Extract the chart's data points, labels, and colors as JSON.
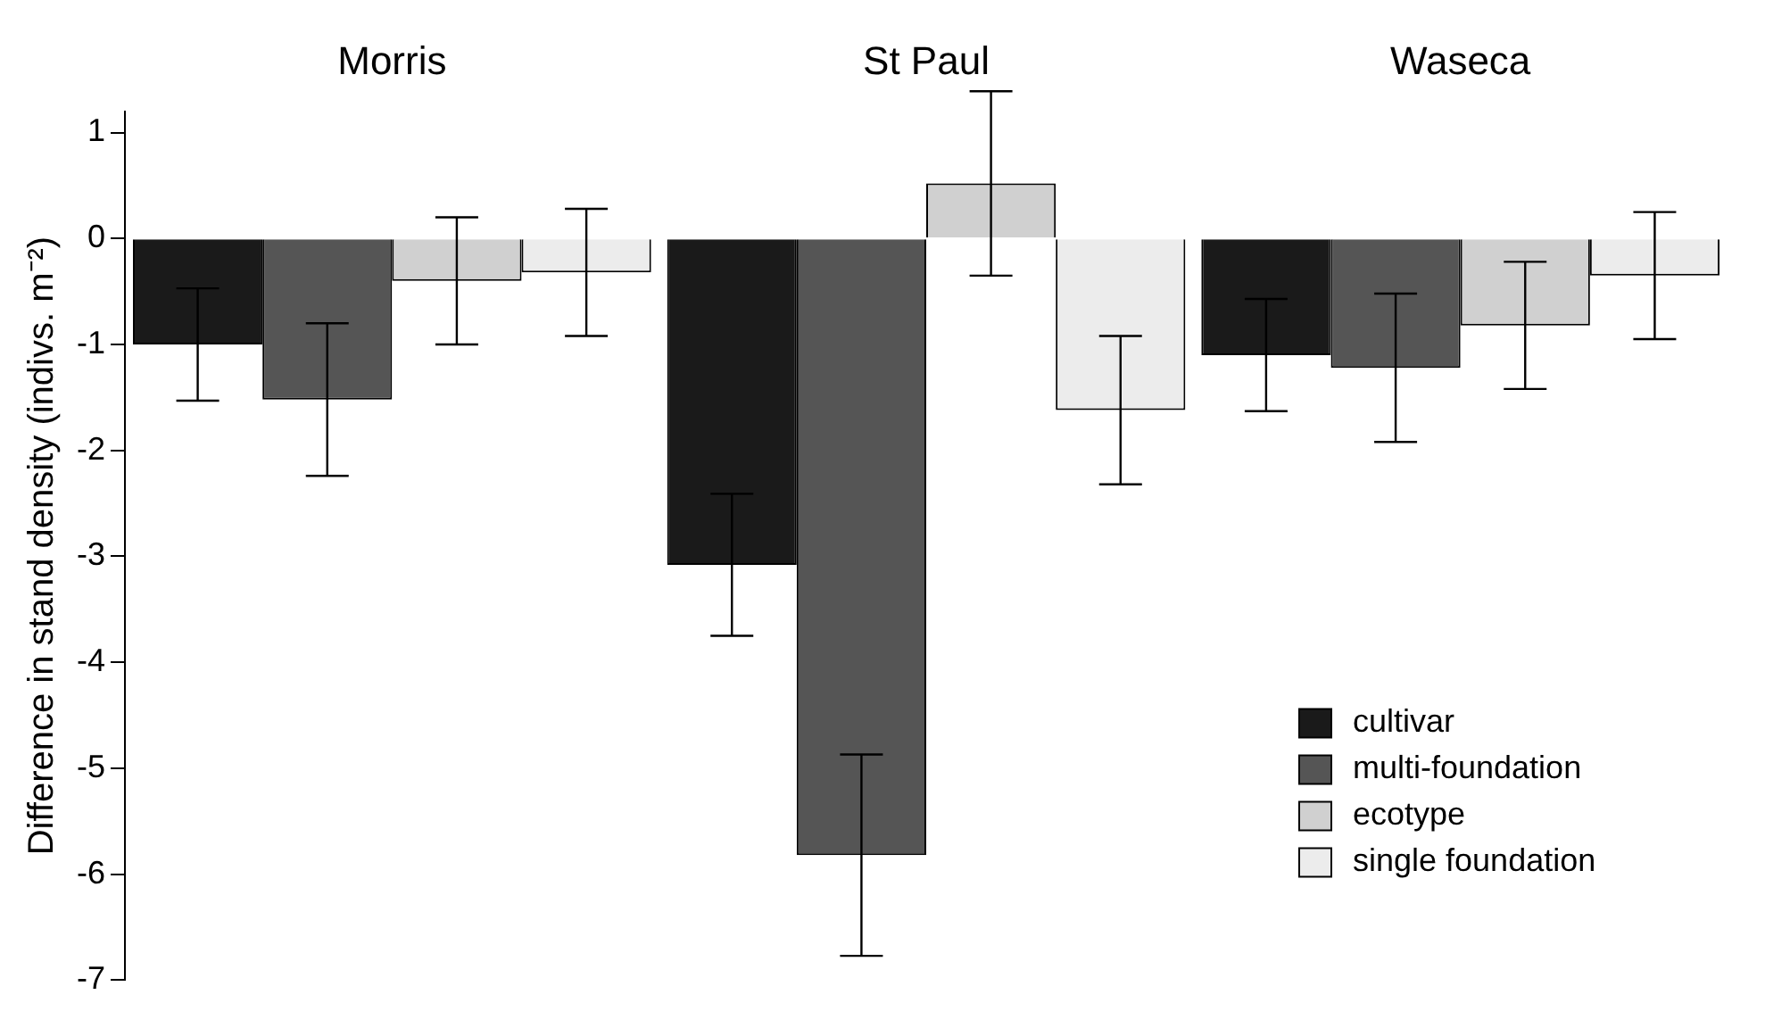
{
  "chart_data": {
    "type": "bar",
    "ylabel": "Difference in stand density (indivs. m⁻²)",
    "categories": [
      "Morris",
      "St Paul",
      "Waseca"
    ],
    "series": [
      {
        "name": "cultivar",
        "color": "#1a1a1a",
        "values": [
          -1.0,
          -3.08,
          -1.1
        ],
        "errors": [
          0.53,
          0.67,
          0.53
        ]
      },
      {
        "name": "multi-foundation",
        "color": "#555555",
        "values": [
          -1.52,
          -5.82,
          -1.22
        ],
        "errors": [
          0.72,
          0.95,
          0.7
        ]
      },
      {
        "name": "ecotype",
        "color": "#d0d0d0",
        "values": [
          -0.4,
          0.52,
          -0.82
        ],
        "errors": [
          0.6,
          0.87,
          0.6
        ]
      },
      {
        "name": "single foundation",
        "color": "#ececec",
        "values": [
          -0.32,
          -1.62,
          -0.35
        ],
        "errors": [
          0.6,
          0.7,
          0.6
        ]
      }
    ],
    "ylim": [
      -7,
      1.2
    ],
    "yticks": [
      -7,
      -6,
      -5,
      -4,
      -3,
      -2,
      -1,
      0,
      1
    ],
    "grid": false,
    "legend": "bottom right"
  }
}
